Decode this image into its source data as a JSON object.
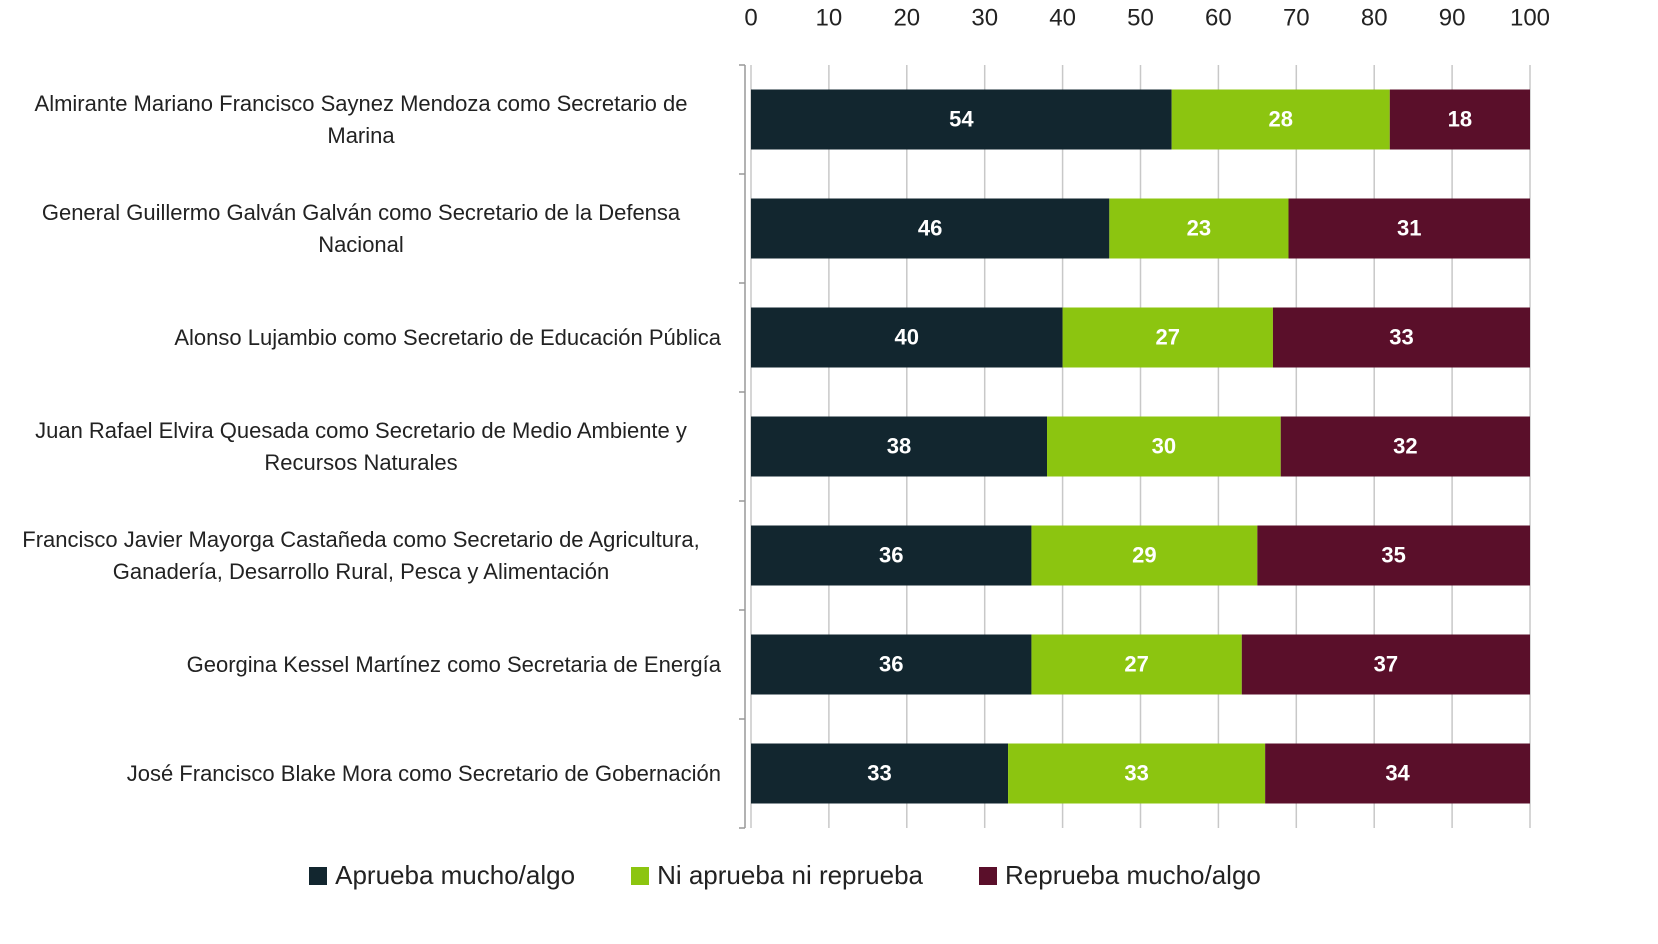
{
  "chart_data": {
    "type": "stacked-bar",
    "categories": [
      "Almirante Mariano Francisco Saynez Mendoza como Secretario de Marina",
      "General Guillermo Galván Galván como Secretario de la Defensa Nacional",
      "Alonso Lujambio como Secretario de Educación Pública",
      "Juan Rafael Elvira Quesada como Secretario de Medio Ambiente y Recursos Naturales",
      "Francisco Javier Mayorga Castañeda como Secretario de Agricultura, Ganadería, Desarrollo Rural, Pesca y Alimentación",
      "Georgina Kessel Martínez como Secretaria de Energía",
      "José Francisco Blake Mora como Secretario de Gobernación"
    ],
    "series": [
      {
        "name": "Aprueba mucho/algo",
        "color": "#12262f",
        "values": [
          54,
          46,
          40,
          38,
          36,
          36,
          33
        ]
      },
      {
        "name": "Ni aprueba ni reprueba",
        "color": "#8cc510",
        "values": [
          28,
          23,
          27,
          30,
          29,
          27,
          33
        ]
      },
      {
        "name": "Reprueba mucho/algo",
        "color": "#5a0f2a",
        "values": [
          18,
          31,
          33,
          32,
          35,
          37,
          34
        ]
      }
    ],
    "xlim": [
      0,
      100
    ],
    "xticks": [
      0,
      10,
      20,
      30,
      40,
      50,
      60,
      70,
      80,
      90,
      100
    ],
    "grid": true
  }
}
